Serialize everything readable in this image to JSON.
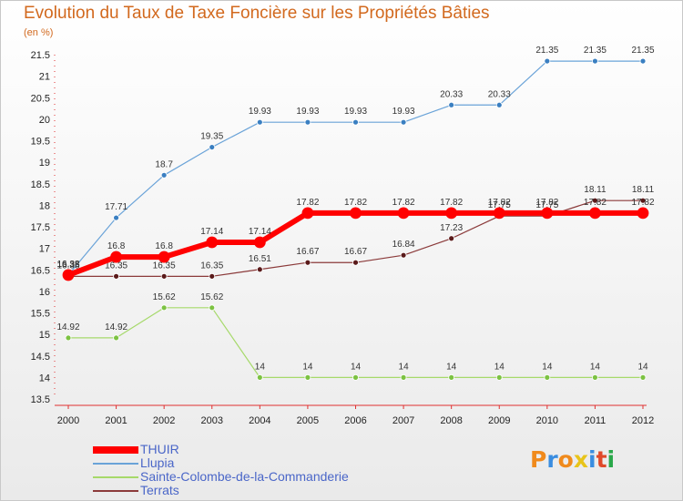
{
  "header": {
    "title": "Evolution du Taux de Taxe Foncière sur les Propriétés Bâties",
    "unit": "(en %)"
  },
  "logo": {
    "letters": [
      "P",
      "r",
      "o",
      "x",
      "i",
      "t",
      "i"
    ],
    "colors": [
      "#f08a1c",
      "#3a8de0",
      "#f08a1c",
      "#e8c41a",
      "#3a8de0",
      "#e04a2a",
      "#2aa84a"
    ]
  },
  "chart_data": {
    "type": "line",
    "x": [
      2000,
      2001,
      2002,
      2003,
      2004,
      2005,
      2006,
      2007,
      2008,
      2009,
      2010,
      2011,
      2012
    ],
    "ylim": [
      13.5,
      21.5
    ],
    "yticks": [
      13.5,
      14,
      14.5,
      15,
      15.5,
      16,
      16.5,
      17,
      17.5,
      18,
      18.5,
      19,
      19.5,
      20,
      20.5,
      21,
      21.5
    ],
    "grid": false,
    "legend_position": "bottom-left",
    "series": [
      {
        "name": "Llupia",
        "color": "#6aa3d8",
        "marker": "#3a7fc1",
        "width": 1.2,
        "values": [
          16.38,
          17.71,
          18.7,
          19.35,
          19.93,
          19.93,
          19.93,
          19.93,
          20.33,
          20.33,
          21.35,
          21.35,
          21.35
        ],
        "labels": [
          "16.38",
          "17.71",
          "18.7",
          "19.35",
          "19.93",
          "19.93",
          "19.93",
          "19.93",
          "20.33",
          "20.33",
          "21.35",
          "21.35",
          "21.35"
        ]
      },
      {
        "name": "Sainte-Colombe-de-la-Commanderie",
        "color": "#a6d96a",
        "marker": "#7cc242",
        "width": 1.2,
        "values": [
          14.92,
          14.92,
          15.62,
          15.62,
          14,
          14,
          14,
          14,
          14,
          14,
          14,
          14,
          14
        ],
        "labels": [
          "14.92",
          "14.92",
          "15.62",
          "15.62",
          "14",
          "14",
          "14",
          "14",
          "14",
          "14",
          "14",
          "14",
          "14"
        ]
      },
      {
        "name": "Terrats",
        "color": "#8b3a3a",
        "marker": "#5a1a1a",
        "width": 1.2,
        "values": [
          16.35,
          16.35,
          16.35,
          16.35,
          16.51,
          16.67,
          16.67,
          16.84,
          17.23,
          17.75,
          17.75,
          18.11,
          18.11
        ],
        "labels": [
          "16.35",
          "16.35",
          "16.35",
          "16.35",
          "16.51",
          "16.67",
          "16.67",
          "16.84",
          "17.23",
          "17.75",
          "17.75",
          "18.11",
          "18.11"
        ]
      },
      {
        "name": "THUIR",
        "color": "#ff0000",
        "marker": "#ff0000",
        "width": 6,
        "values": [
          16.38,
          16.8,
          16.8,
          17.14,
          17.14,
          17.82,
          17.82,
          17.82,
          17.82,
          17.82,
          17.82,
          17.82,
          17.82
        ],
        "labels": [
          "16.38",
          "16.8",
          "16.8",
          "17.14",
          "17.14",
          "17.82",
          "17.82",
          "17.82",
          "17.82",
          "17.82",
          "17.82",
          "17.82",
          "17.82"
        ]
      }
    ],
    "legend_order": [
      "THUIR",
      "Llupia",
      "Sainte-Colombe-de-la-Commanderie",
      "Terrats"
    ]
  }
}
